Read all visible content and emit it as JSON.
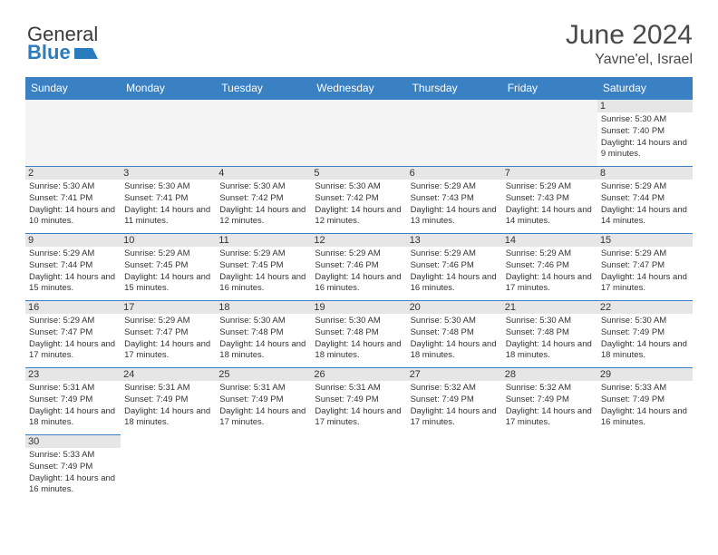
{
  "logo": {
    "part1": "General",
    "part2": "Blue"
  },
  "title": "June 2024",
  "location": "Yavne'el, Israel",
  "day_headers": [
    "Sunday",
    "Monday",
    "Tuesday",
    "Wednesday",
    "Thursday",
    "Friday",
    "Saturday"
  ],
  "colors": {
    "header_bg": "#3a81c4",
    "header_text": "#ffffff",
    "daynum_bg": "#e6e6e6",
    "border": "#3a81c4",
    "logo_blue": "#2b7bbf"
  },
  "days": {
    "1": {
      "sunrise": "5:30 AM",
      "sunset": "7:40 PM",
      "daylight": "14 hours and 9 minutes."
    },
    "2": {
      "sunrise": "5:30 AM",
      "sunset": "7:41 PM",
      "daylight": "14 hours and 10 minutes."
    },
    "3": {
      "sunrise": "5:30 AM",
      "sunset": "7:41 PM",
      "daylight": "14 hours and 11 minutes."
    },
    "4": {
      "sunrise": "5:30 AM",
      "sunset": "7:42 PM",
      "daylight": "14 hours and 12 minutes."
    },
    "5": {
      "sunrise": "5:30 AM",
      "sunset": "7:42 PM",
      "daylight": "14 hours and 12 minutes."
    },
    "6": {
      "sunrise": "5:29 AM",
      "sunset": "7:43 PM",
      "daylight": "14 hours and 13 minutes."
    },
    "7": {
      "sunrise": "5:29 AM",
      "sunset": "7:43 PM",
      "daylight": "14 hours and 14 minutes."
    },
    "8": {
      "sunrise": "5:29 AM",
      "sunset": "7:44 PM",
      "daylight": "14 hours and 14 minutes."
    },
    "9": {
      "sunrise": "5:29 AM",
      "sunset": "7:44 PM",
      "daylight": "14 hours and 15 minutes."
    },
    "10": {
      "sunrise": "5:29 AM",
      "sunset": "7:45 PM",
      "daylight": "14 hours and 15 minutes."
    },
    "11": {
      "sunrise": "5:29 AM",
      "sunset": "7:45 PM",
      "daylight": "14 hours and 16 minutes."
    },
    "12": {
      "sunrise": "5:29 AM",
      "sunset": "7:46 PM",
      "daylight": "14 hours and 16 minutes."
    },
    "13": {
      "sunrise": "5:29 AM",
      "sunset": "7:46 PM",
      "daylight": "14 hours and 16 minutes."
    },
    "14": {
      "sunrise": "5:29 AM",
      "sunset": "7:46 PM",
      "daylight": "14 hours and 17 minutes."
    },
    "15": {
      "sunrise": "5:29 AM",
      "sunset": "7:47 PM",
      "daylight": "14 hours and 17 minutes."
    },
    "16": {
      "sunrise": "5:29 AM",
      "sunset": "7:47 PM",
      "daylight": "14 hours and 17 minutes."
    },
    "17": {
      "sunrise": "5:29 AM",
      "sunset": "7:47 PM",
      "daylight": "14 hours and 17 minutes."
    },
    "18": {
      "sunrise": "5:30 AM",
      "sunset": "7:48 PM",
      "daylight": "14 hours and 18 minutes."
    },
    "19": {
      "sunrise": "5:30 AM",
      "sunset": "7:48 PM",
      "daylight": "14 hours and 18 minutes."
    },
    "20": {
      "sunrise": "5:30 AM",
      "sunset": "7:48 PM",
      "daylight": "14 hours and 18 minutes."
    },
    "21": {
      "sunrise": "5:30 AM",
      "sunset": "7:48 PM",
      "daylight": "14 hours and 18 minutes."
    },
    "22": {
      "sunrise": "5:30 AM",
      "sunset": "7:49 PM",
      "daylight": "14 hours and 18 minutes."
    },
    "23": {
      "sunrise": "5:31 AM",
      "sunset": "7:49 PM",
      "daylight": "14 hours and 18 minutes."
    },
    "24": {
      "sunrise": "5:31 AM",
      "sunset": "7:49 PM",
      "daylight": "14 hours and 18 minutes."
    },
    "25": {
      "sunrise": "5:31 AM",
      "sunset": "7:49 PM",
      "daylight": "14 hours and 17 minutes."
    },
    "26": {
      "sunrise": "5:31 AM",
      "sunset": "7:49 PM",
      "daylight": "14 hours and 17 minutes."
    },
    "27": {
      "sunrise": "5:32 AM",
      "sunset": "7:49 PM",
      "daylight": "14 hours and 17 minutes."
    },
    "28": {
      "sunrise": "5:32 AM",
      "sunset": "7:49 PM",
      "daylight": "14 hours and 17 minutes."
    },
    "29": {
      "sunrise": "5:33 AM",
      "sunset": "7:49 PM",
      "daylight": "14 hours and 16 minutes."
    },
    "30": {
      "sunrise": "5:33 AM",
      "sunset": "7:49 PM",
      "daylight": "14 hours and 16 minutes."
    }
  },
  "labels": {
    "sunrise": "Sunrise:",
    "sunset": "Sunset:",
    "daylight": "Daylight:"
  },
  "grid": [
    [
      null,
      null,
      null,
      null,
      null,
      null,
      "1"
    ],
    [
      "2",
      "3",
      "4",
      "5",
      "6",
      "7",
      "8"
    ],
    [
      "9",
      "10",
      "11",
      "12",
      "13",
      "14",
      "15"
    ],
    [
      "16",
      "17",
      "18",
      "19",
      "20",
      "21",
      "22"
    ],
    [
      "23",
      "24",
      "25",
      "26",
      "27",
      "28",
      "29"
    ],
    [
      "30",
      null,
      null,
      null,
      null,
      null,
      null
    ]
  ]
}
